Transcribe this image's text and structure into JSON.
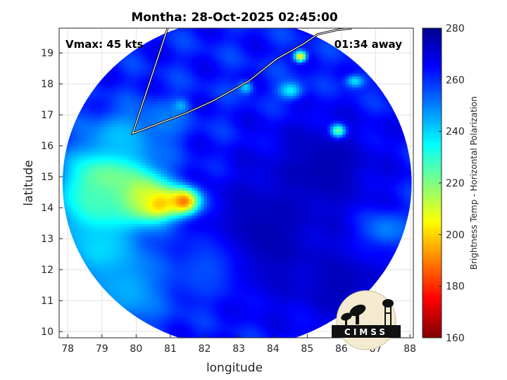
{
  "figure": {
    "title": "Montha: 28-Oct-2025 02:45:00",
    "vmax_label": "Vmax: 45 kts",
    "time_away": "01:34 away",
    "logo_text": "CIMSS"
  },
  "chart_data": {
    "type": "heatmap",
    "title": "Montha: 28-Oct-2025 02:45:00",
    "xlabel": "longitude",
    "ylabel": "latitude",
    "xlim": [
      77.75,
      88.1
    ],
    "ylim": [
      9.8,
      19.8
    ],
    "x_ticks": [
      78,
      79,
      80,
      81,
      82,
      83,
      84,
      85,
      86,
      87,
      88
    ],
    "y_ticks": [
      10,
      11,
      12,
      13,
      14,
      15,
      16,
      17,
      18,
      19
    ],
    "grid": true,
    "colorbar": {
      "label": "Brightness Temp - Horizontal Polarization",
      "range": [
        160,
        280
      ],
      "ticks": [
        160,
        180,
        200,
        220,
        240,
        260,
        280
      ],
      "colormap": [
        "#7f0000",
        "#ff0000",
        "#ff8000",
        "#ffff00",
        "#80ff80",
        "#00ffff",
        "#0080ff",
        "#0000ff",
        "#00008f"
      ]
    },
    "swath": {
      "center_lon": 82.95,
      "center_lat": 14.8,
      "radius_lon": 5.1,
      "radius_lat": 5.3
    },
    "background_temp": 262,
    "features": [
      {
        "lon": 81.4,
        "lat": 14.2,
        "sigma_lon": 0.35,
        "sigma_lat": 0.3,
        "temp": 163
      },
      {
        "lon": 80.6,
        "lat": 14.15,
        "sigma_lon": 0.45,
        "sigma_lat": 0.35,
        "temp": 178
      },
      {
        "lon": 80.0,
        "lat": 14.4,
        "sigma_lon": 0.6,
        "sigma_lat": 0.55,
        "temp": 198
      },
      {
        "lon": 79.2,
        "lat": 14.9,
        "sigma_lon": 0.8,
        "sigma_lat": 0.75,
        "temp": 214
      },
      {
        "lon": 78.9,
        "lat": 14.1,
        "sigma_lon": 0.7,
        "sigma_lat": 0.8,
        "temp": 226
      },
      {
        "lon": 79.0,
        "lat": 12.6,
        "sigma_lon": 0.8,
        "sigma_lat": 0.7,
        "temp": 238
      },
      {
        "lon": 79.8,
        "lat": 11.4,
        "sigma_lon": 0.8,
        "sigma_lat": 0.9,
        "temp": 244
      },
      {
        "lon": 79.6,
        "lat": 16.3,
        "sigma_lon": 0.7,
        "sigma_lat": 0.6,
        "temp": 242
      },
      {
        "lon": 80.8,
        "lat": 16.8,
        "sigma_lon": 0.5,
        "sigma_lat": 0.5,
        "temp": 250
      },
      {
        "lon": 83.6,
        "lat": 13.0,
        "sigma_lon": 1.3,
        "sigma_lat": 1.5,
        "temp": 276
      },
      {
        "lon": 85.5,
        "lat": 15.3,
        "sigma_lon": 1.2,
        "sigma_lat": 1.2,
        "temp": 275
      },
      {
        "lon": 86.0,
        "lat": 11.5,
        "sigma_lon": 1.0,
        "sigma_lat": 1.0,
        "temp": 274
      },
      {
        "lon": 84.5,
        "lat": 17.8,
        "sigma_lon": 0.25,
        "sigma_lat": 0.2,
        "temp": 236
      },
      {
        "lon": 85.9,
        "lat": 16.5,
        "sigma_lon": 0.15,
        "sigma_lat": 0.15,
        "temp": 222
      },
      {
        "lon": 84.8,
        "lat": 18.9,
        "sigma_lon": 0.12,
        "sigma_lat": 0.12,
        "temp": 200
      },
      {
        "lon": 86.4,
        "lat": 18.1,
        "sigma_lon": 0.2,
        "sigma_lat": 0.15,
        "temp": 238
      },
      {
        "lon": 83.2,
        "lat": 17.9,
        "sigma_lon": 0.15,
        "sigma_lat": 0.15,
        "temp": 240
      },
      {
        "lon": 81.3,
        "lat": 17.3,
        "sigma_lon": 0.15,
        "sigma_lat": 0.15,
        "temp": 244
      },
      {
        "lon": 87.3,
        "lat": 13.3,
        "sigma_lon": 0.5,
        "sigma_lat": 0.4,
        "temp": 250
      },
      {
        "lon": 87.0,
        "lat": 10.5,
        "sigma_lon": 0.4,
        "sigma_lat": 0.4,
        "temp": 252
      },
      {
        "lon": 82.0,
        "lat": 12.0,
        "sigma_lon": 0.8,
        "sigma_lat": 0.8,
        "temp": 256
      }
    ],
    "coastline": [
      [
        80.92,
        19.8
      ],
      [
        79.9,
        16.4
      ],
      [
        81.45,
        17.05
      ],
      [
        82.25,
        17.45
      ],
      [
        83.3,
        18.1
      ],
      [
        84.1,
        18.8
      ],
      [
        84.9,
        19.3
      ],
      [
        85.3,
        19.6
      ],
      [
        85.9,
        19.75
      ],
      [
        86.3,
        19.8
      ]
    ]
  }
}
